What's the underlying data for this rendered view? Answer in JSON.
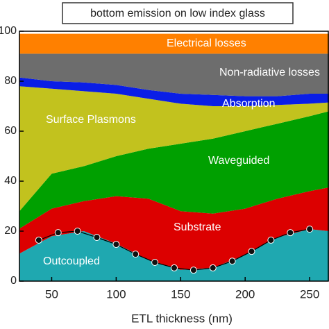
{
  "chart_data": {
    "type": "area",
    "title": "bottom emission on low index glass",
    "xlabel": "ETL thickness (nm)",
    "x": [
      25,
      50,
      75,
      100,
      125,
      150,
      175,
      200,
      225,
      250,
      265
    ],
    "series": [
      {
        "name": "Outcoupled",
        "color": "#1fa8b0",
        "values": [
          11,
          18,
          20,
          15,
          8.5,
          4.5,
          5.3,
          10.5,
          17.5,
          20.8,
          20
        ]
      },
      {
        "name": "Substrate",
        "color": "#dc0000",
        "values": [
          10,
          11,
          12,
          19,
          24.5,
          23.5,
          21.7,
          18.5,
          15.5,
          15.2,
          17.5
        ]
      },
      {
        "name": "Waveguided",
        "color": "#00a000",
        "values": [
          7,
          14,
          14,
          16,
          20,
          27,
          30,
          31,
          30,
          30,
          30.5
        ]
      },
      {
        "name": "Surface Plasmons",
        "color": "#c2c21e",
        "values": [
          50,
          34,
          30,
          25,
          20,
          16,
          13,
          10,
          7.5,
          5,
          3.5
        ]
      },
      {
        "name": "Absorption",
        "color": "#0a1ee6",
        "values": [
          3.5,
          3,
          3.5,
          3.5,
          3.5,
          4,
          4.5,
          4,
          3.5,
          4,
          3.5
        ]
      },
      {
        "name": "Non-radiative losses",
        "color": "#6d6d6d",
        "values": [
          9.5,
          11,
          11.5,
          12.5,
          14.5,
          16,
          16.5,
          17,
          17,
          16,
          16
        ]
      },
      {
        "name": "Electrical losses",
        "color": "#ff8000",
        "values": [
          8,
          8,
          8,
          8,
          8,
          8,
          8,
          8,
          8,
          8,
          8
        ]
      }
    ],
    "markers": {
      "x": [
        40,
        55,
        70,
        85,
        100,
        115,
        130,
        145,
        160,
        175,
        190,
        205,
        220,
        235,
        250
      ],
      "values": [
        16.4,
        19.4,
        20,
        17.5,
        14.7,
        10.8,
        7.5,
        5.3,
        4.4,
        5.3,
        8,
        11.9,
        16.4,
        19.4,
        20.8
      ]
    },
    "xlim": [
      25,
      265
    ],
    "ylim": [
      0,
      100
    ],
    "xticks": [
      50,
      100,
      150,
      200,
      250
    ],
    "yticks": [
      0,
      20,
      40,
      60,
      80,
      100
    ]
  }
}
